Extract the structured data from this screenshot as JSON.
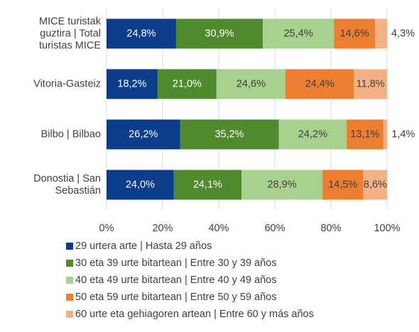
{
  "chart_data": {
    "type": "stacked_bar_horizontal",
    "categories": [
      "MICE turistak\nguztira | Total\nturistas MICE",
      "Vitoria-Gasteiz",
      "Bilbo | Bilbao",
      "Donostia | San\nSebastián"
    ],
    "series": [
      {
        "name": "29 urtera arte | Hasta 29 años",
        "color": "#0b3d8c",
        "values": [
          24.8,
          18.2,
          26.2,
          24.0
        ],
        "value_labels": [
          "24,8%",
          "18,2%",
          "26,2%",
          "24,0%"
        ]
      },
      {
        "name": "30 eta 39 urte bitartean | Entre 30 y 39 años",
        "color": "#4f8a2e",
        "values": [
          30.9,
          21.0,
          35.2,
          24.1
        ],
        "value_labels": [
          "30,9%",
          "21,0%",
          "35,2%",
          "24,1%"
        ]
      },
      {
        "name": "40 eta 49 urte bitartean | Entre 40 y 49 años",
        "color": "#a9d18e",
        "values": [
          25.4,
          24.6,
          24.2,
          28.9
        ],
        "value_labels": [
          "25,4%",
          "24,6%",
          "24,2%",
          "28,9%"
        ]
      },
      {
        "name": "50 eta 59 urte bitartean | Entre 50 y 59 años",
        "color": "#ed7d31",
        "values": [
          14.6,
          24.4,
          13.1,
          14.5
        ],
        "value_labels": [
          "14,6%",
          "24,4%",
          "13,1%",
          "14,5%"
        ]
      },
      {
        "name": "60 urte eta gehiagoren artean | Entre 60 y más años",
        "color": "#f4b183",
        "values": [
          4.3,
          11.8,
          1.4,
          8.6
        ],
        "value_labels": [
          "4,3%",
          "11,8%",
          "1,4%",
          "8,6%"
        ]
      }
    ],
    "xlim": [
      0,
      100
    ],
    "xticks": [
      {
        "value": 0,
        "label": "0%"
      },
      {
        "value": 20,
        "label": "20%"
      },
      {
        "value": 40,
        "label": "40%"
      },
      {
        "value": 60,
        "label": "60%"
      },
      {
        "value": 80,
        "label": "80%"
      },
      {
        "value": 100,
        "label": "100%"
      }
    ],
    "grid": true,
    "legend": "bottom"
  }
}
